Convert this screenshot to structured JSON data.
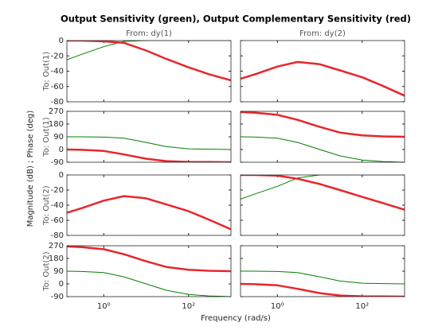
{
  "figure": {
    "title": "Output Sensitivity (green), Output Complementary Sensitivity (red)",
    "xlabel": "Frequency  (rad/s)",
    "ylabel": "Magnitude (dB) ; Phase (deg)",
    "columns": [
      "From: dy(1)",
      "From: dy(2)"
    ],
    "rows": [
      "To: Out(1)",
      "To: Out(1)",
      "To: Out(2)",
      "To: Out(2)"
    ]
  },
  "chart_data": [
    {
      "type": "line",
      "log_x": true,
      "x": [
        0.135,
        0.3,
        1,
        3,
        10,
        30,
        100,
        300,
        1000
      ],
      "xlim": [
        0.135,
        1000
      ],
      "xticks": [
        {
          "value": 1,
          "label": "10⁰"
        },
        {
          "value": 100,
          "label": "10²"
        }
      ],
      "ylim": [
        -80,
        0
      ],
      "yticks": [
        0,
        -20,
        -40,
        -60,
        -80
      ],
      "series": [
        {
          "name": "S",
          "color": "#008000",
          "values": [
            -25,
            -18,
            -8,
            -1,
            0,
            0,
            0,
            0,
            0
          ]
        },
        {
          "name": "T",
          "color": "#e8262b",
          "values": [
            0,
            0,
            -1,
            -3,
            -13,
            -24,
            -35,
            -44,
            -52
          ]
        }
      ]
    },
    {
      "type": "line",
      "log_x": true,
      "x": [
        0.135,
        0.3,
        1,
        3,
        10,
        30,
        100,
        300,
        1000
      ],
      "xlim": [
        0.135,
        1000
      ],
      "xticks": [
        {
          "value": 1,
          "label": "10⁰"
        },
        {
          "value": 100,
          "label": "10²"
        }
      ],
      "ylim": [
        -80,
        0
      ],
      "yticks": [
        0,
        -20,
        -40,
        -60,
        -80
      ],
      "series": [
        {
          "name": "T",
          "color": "#e8262b",
          "values": [
            -50,
            -44,
            -34,
            -28,
            -31,
            -39,
            -48,
            -59,
            -72
          ]
        }
      ]
    },
    {
      "type": "line",
      "log_x": true,
      "x": [
        0.135,
        0.3,
        1,
        3,
        10,
        30,
        100,
        300,
        1000
      ],
      "xlim": [
        0.135,
        1000
      ],
      "xticks": [
        {
          "value": 1,
          "label": "10⁰"
        },
        {
          "value": 100,
          "label": "10²"
        }
      ],
      "ylim": [
        -90,
        270
      ],
      "yticks": [
        270,
        180,
        90,
        0,
        -90
      ],
      "series": [
        {
          "name": "S",
          "color": "#008000",
          "values": [
            90,
            90,
            88,
            80,
            50,
            20,
            5,
            2,
            0
          ]
        },
        {
          "name": "T",
          "color": "#e8262b",
          "values": [
            0,
            -2,
            -10,
            -35,
            -65,
            -82,
            -88,
            -89,
            -90
          ]
        }
      ]
    },
    {
      "type": "line",
      "log_x": true,
      "x": [
        0.135,
        0.3,
        1,
        3,
        10,
        30,
        100,
        300,
        1000
      ],
      "xlim": [
        0.135,
        1000
      ],
      "xticks": [
        {
          "value": 1,
          "label": "10⁰"
        },
        {
          "value": 100,
          "label": "10²"
        }
      ],
      "ylim": [
        -90,
        270
      ],
      "yticks": [
        270,
        180,
        90,
        0,
        -90
      ],
      "series": [
        {
          "name": "S",
          "color": "#008000",
          "values": [
            90,
            88,
            80,
            50,
            0,
            -45,
            -75,
            -85,
            -90
          ]
        },
        {
          "name": "T",
          "color": "#e8262b",
          "values": [
            265,
            260,
            245,
            210,
            160,
            120,
            100,
            93,
            90
          ]
        }
      ]
    },
    {
      "type": "line",
      "log_x": true,
      "x": [
        0.135,
        0.3,
        1,
        3,
        10,
        30,
        100,
        300,
        1000
      ],
      "xlim": [
        0.135,
        1000
      ],
      "xticks": [
        {
          "value": 1,
          "label": "10⁰"
        },
        {
          "value": 100,
          "label": "10²"
        }
      ],
      "ylim": [
        -80,
        0
      ],
      "yticks": [
        0,
        -20,
        -40,
        -60,
        -80
      ],
      "series": [
        {
          "name": "T",
          "color": "#e8262b",
          "values": [
            -50,
            -44,
            -34,
            -28,
            -31,
            -39,
            -48,
            -59,
            -72
          ]
        }
      ]
    },
    {
      "type": "line",
      "log_x": true,
      "x": [
        0.135,
        0.3,
        1,
        3,
        10,
        30,
        100,
        300,
        1000
      ],
      "xlim": [
        0.135,
        1000
      ],
      "xticks": [
        {
          "value": 1,
          "label": "10⁰"
        },
        {
          "value": 100,
          "label": "10²"
        }
      ],
      "ylim": [
        -80,
        0
      ],
      "yticks": [
        0,
        -20,
        -40,
        -60,
        -80
      ],
      "series": [
        {
          "name": "S",
          "color": "#008000",
          "values": [
            -32,
            -25,
            -15,
            -4,
            0,
            0,
            0,
            0,
            0
          ]
        },
        {
          "name": "T",
          "color": "#e8262b",
          "values": [
            0,
            0,
            -1,
            -5,
            -12,
            -20,
            -29,
            -37,
            -46
          ]
        }
      ]
    },
    {
      "type": "line",
      "log_x": true,
      "x": [
        0.135,
        0.3,
        1,
        3,
        10,
        30,
        100,
        300,
        1000
      ],
      "xlim": [
        0.135,
        1000
      ],
      "xticks": [
        {
          "value": 1,
          "label": "10⁰"
        },
        {
          "value": 100,
          "label": "10²"
        }
      ],
      "ylim": [
        -90,
        270
      ],
      "yticks": [
        270,
        180,
        90,
        0,
        -90
      ],
      "series": [
        {
          "name": "S",
          "color": "#008000",
          "values": [
            90,
            88,
            80,
            50,
            0,
            -45,
            -75,
            -85,
            -90
          ]
        },
        {
          "name": "T",
          "color": "#e8262b",
          "values": [
            265,
            260,
            245,
            210,
            160,
            120,
            100,
            93,
            90
          ]
        }
      ]
    },
    {
      "type": "line",
      "log_x": true,
      "x": [
        0.135,
        0.3,
        1,
        3,
        10,
        30,
        100,
        300,
        1000
      ],
      "xlim": [
        0.135,
        1000
      ],
      "xticks": [
        {
          "value": 1,
          "label": "10⁰"
        },
        {
          "value": 100,
          "label": "10²"
        }
      ],
      "ylim": [
        -90,
        270
      ],
      "yticks": [
        270,
        180,
        90,
        0,
        -90
      ],
      "series": [
        {
          "name": "S",
          "color": "#008000",
          "values": [
            90,
            90,
            88,
            80,
            50,
            20,
            5,
            2,
            0
          ]
        },
        {
          "name": "T",
          "color": "#e8262b",
          "values": [
            0,
            -2,
            -10,
            -35,
            -65,
            -82,
            -88,
            -89,
            -90
          ]
        }
      ]
    }
  ]
}
